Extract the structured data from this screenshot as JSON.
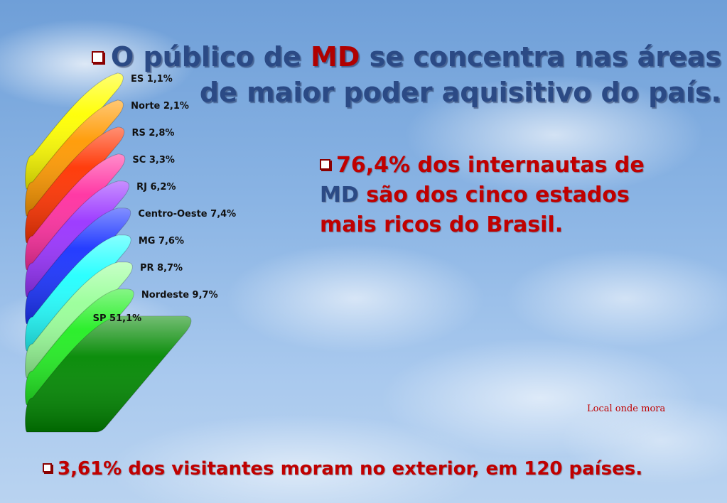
{
  "title": {
    "prefix": "O público de ",
    "highlight": "MD",
    "suffix": " se concentra nas áreas",
    "line2": "de maior poder aquisitivo do país."
  },
  "note_right": {
    "part1": "76,4% dos internautas de",
    "md": "MD",
    "part2": "são dos cinco estados",
    "part3": "mais ricos do Brasil."
  },
  "note_bottom": "3,61% dos visitantes moram no exterior, em 120 países.",
  "chart_data": {
    "type": "bar",
    "orientation": "horizontal",
    "title": "",
    "xlabel": "Local onde mora",
    "categories": [
      "ES",
      "Norte",
      "RS",
      "SC",
      "RJ",
      "Centro-Oeste",
      "MG",
      "PR",
      "Nordeste",
      "SP"
    ],
    "values": [
      1.1,
      2.1,
      2.8,
      3.3,
      6.2,
      7.4,
      7.6,
      8.7,
      9.7,
      51.1
    ],
    "labels": [
      "ES 1,1%",
      "Norte 2,1%",
      "RS 2,8%",
      "SC 3,3%",
      "RJ 6,2%",
      "Centro-Oeste 7,4%",
      "MG 7,6%",
      "PR 8,7%",
      "Nordeste 9,7%",
      "SP 51,1%"
    ],
    "colors": [
      "#ffff00",
      "#ff9900",
      "#ff3300",
      "#ff2fa0",
      "#9933ff",
      "#1a33ff",
      "#22ffff",
      "#99ff99",
      "#22ee22",
      "#008800"
    ],
    "grid": false,
    "legend": "none"
  }
}
